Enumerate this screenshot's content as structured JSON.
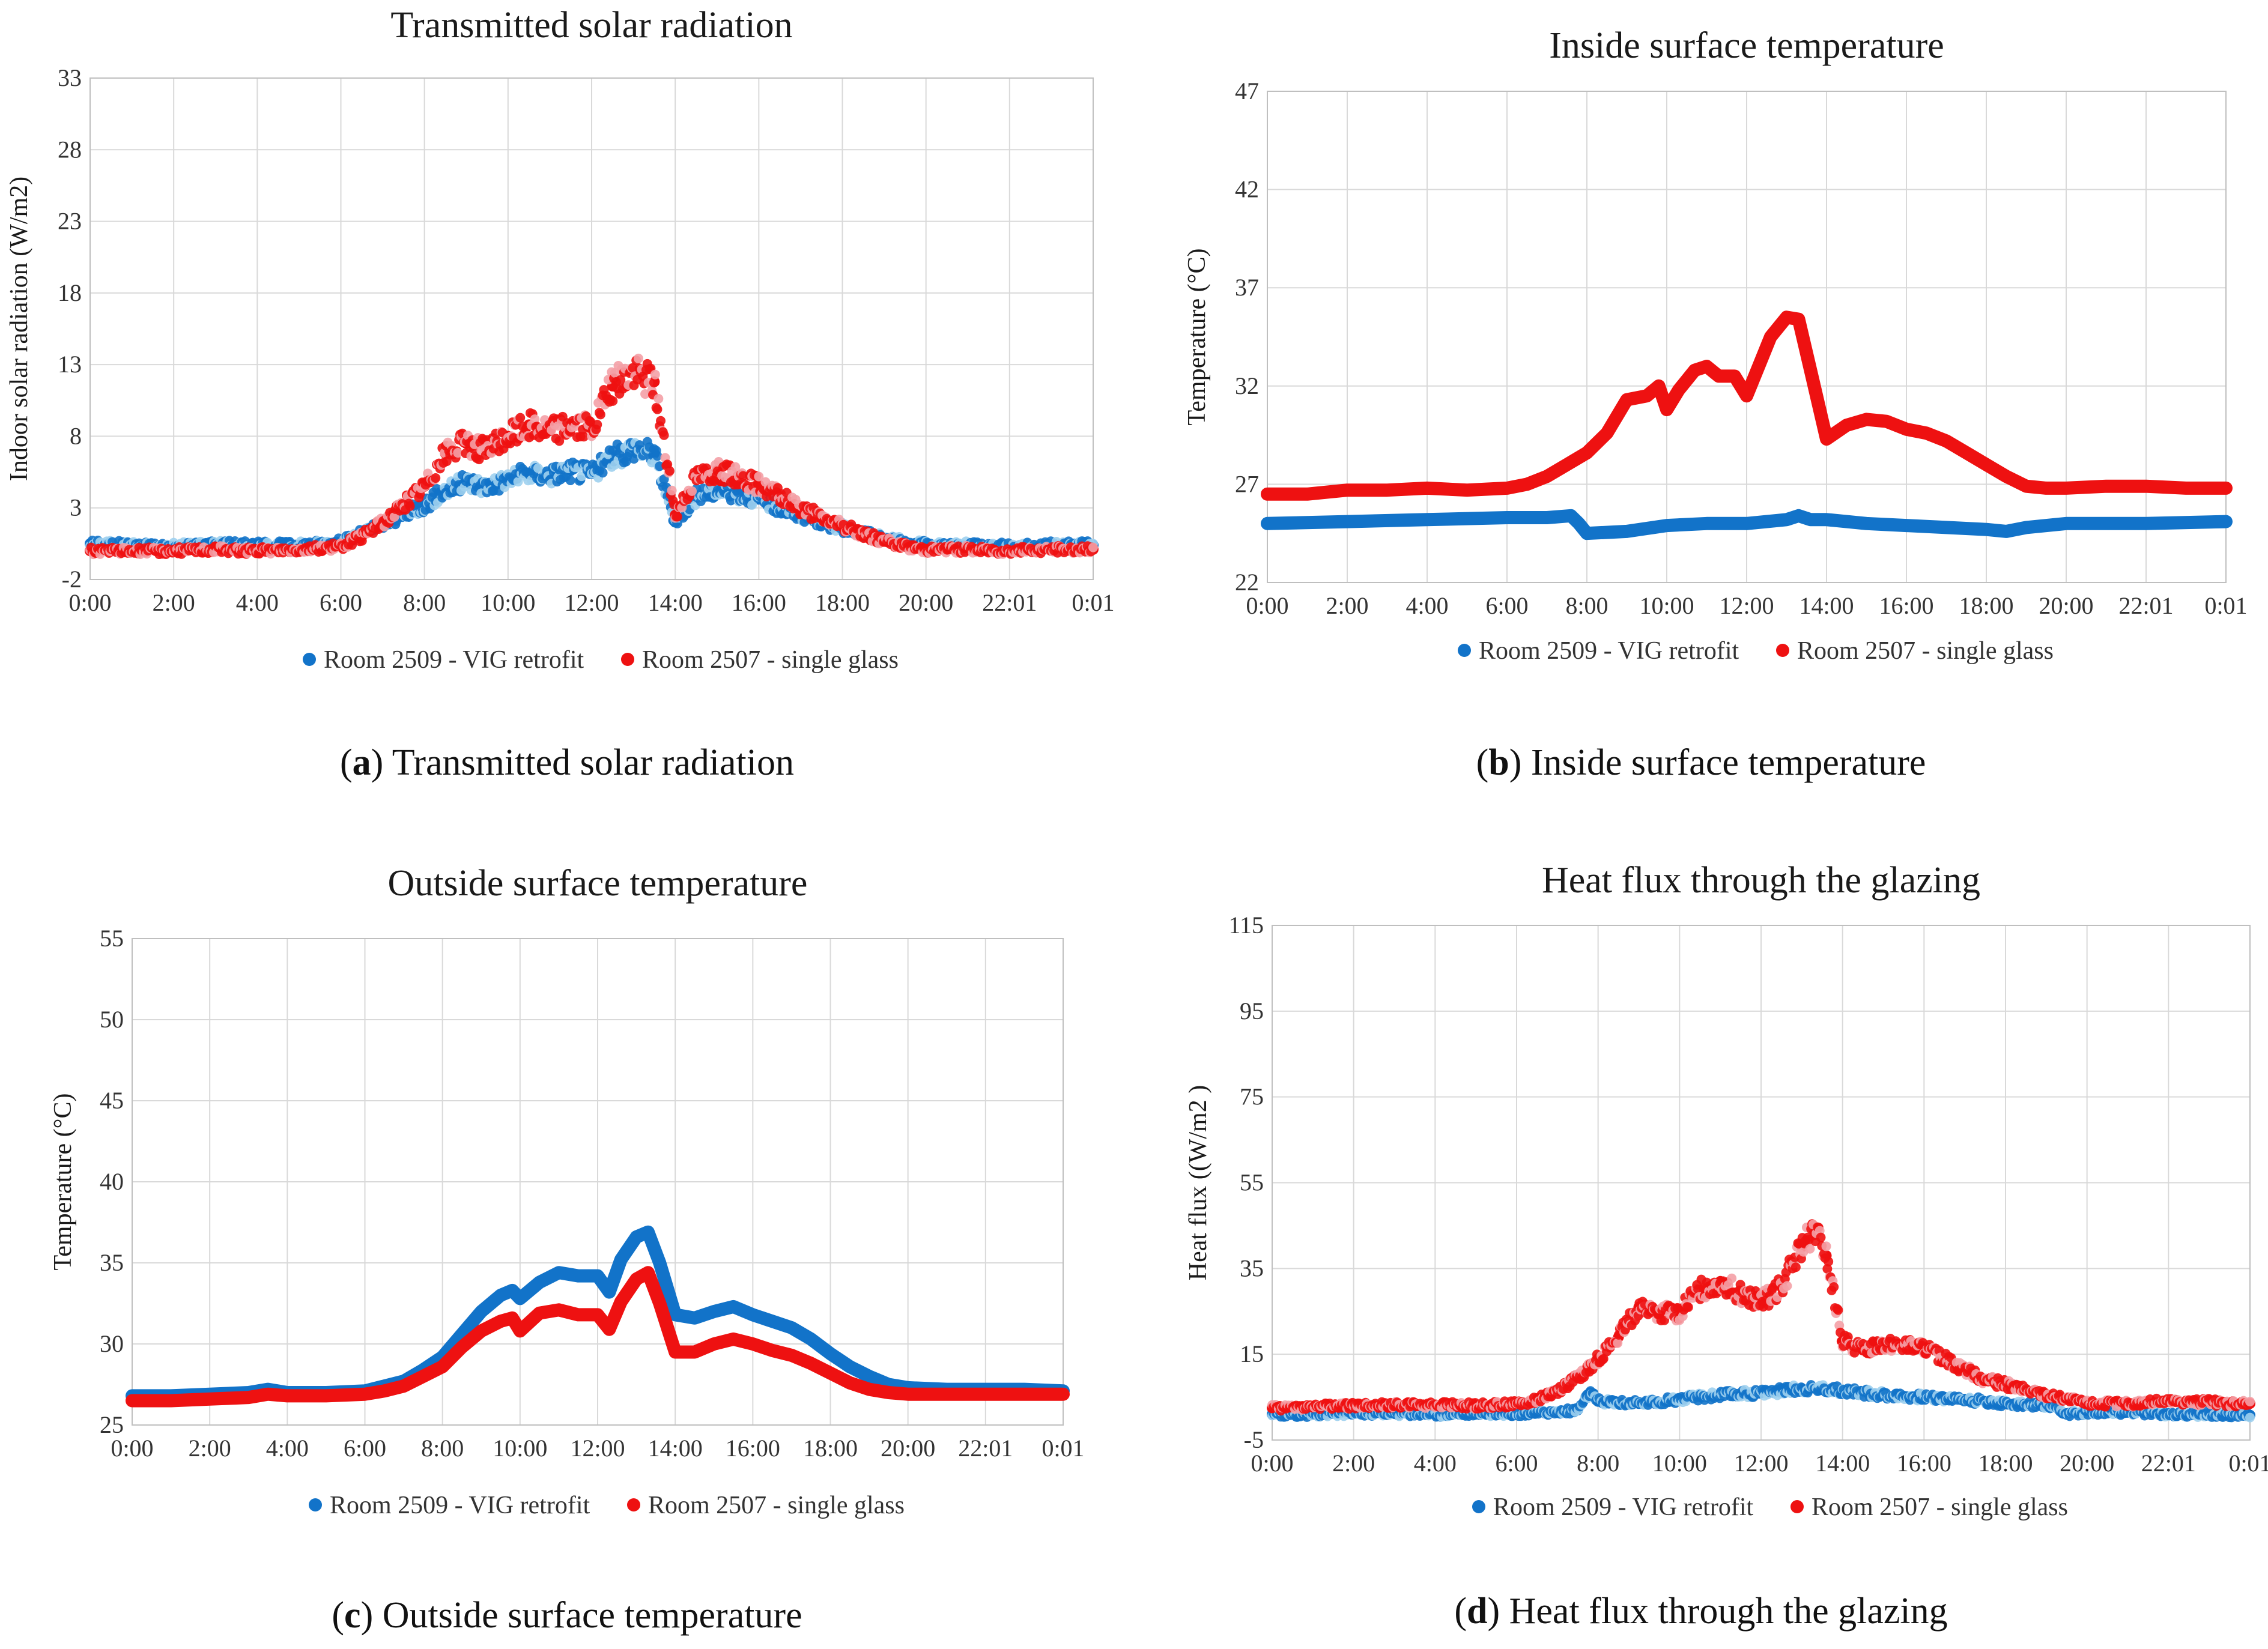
{
  "colors": {
    "vig": "#1273c9",
    "vig_light": "#9fd0ee",
    "single": "#ee1111",
    "single_light": "#f4a0a6",
    "grid": "#d9d9d9",
    "axis": "#bfbfbf"
  },
  "legend": {
    "vig": "Room 2509 - VIG retrofit",
    "single": "Room 2507 - single glass"
  },
  "chart_data": [
    {
      "id": "a",
      "type": "scatter",
      "title": "Transmitted solar radiation",
      "caption_letter": "a",
      "caption_text": "Transmitted solar radiation",
      "xlabel": "",
      "ylabel": "Indoor solar radiation (W/m2)",
      "x_tick_labels": [
        "0:00",
        "2:00",
        "4:00",
        "6:00",
        "8:00",
        "10:00",
        "12:00",
        "14:00",
        "16:00",
        "18:00",
        "20:00",
        "22:01",
        "0:01"
      ],
      "y_ticks": [
        -2,
        3,
        8,
        13,
        18,
        23,
        28,
        33
      ],
      "ylim": [
        -2,
        33
      ],
      "series": [
        {
          "name": "Room 2509 - VIG retrofit",
          "color_key": "vig",
          "x": [
            0,
            1,
            2,
            3,
            4,
            5,
            6,
            6.5,
            7,
            7.5,
            8,
            8.5,
            9,
            9.5,
            10,
            10.5,
            11,
            11.5,
            12,
            12.5,
            13,
            13.5,
            14,
            14.5,
            15,
            15.5,
            16,
            16.5,
            17,
            17.5,
            18,
            18.5,
            19,
            19.5,
            20,
            21,
            22,
            23,
            24
          ],
          "y": [
            0.5,
            0.4,
            0.3,
            0.5,
            0.4,
            0.4,
            0.6,
            1.2,
            1.8,
            2.5,
            3.2,
            4.2,
            4.8,
            4.5,
            5.0,
            5.4,
            5.3,
            5.6,
            5.4,
            6.5,
            7.2,
            6.8,
            2.0,
            3.8,
            4.2,
            4.0,
            3.6,
            3.0,
            2.5,
            2.0,
            1.6,
            1.2,
            0.9,
            0.6,
            0.4,
            0.4,
            0.3,
            0.4,
            0.4
          ]
        },
        {
          "name": "Room 2507 - single glass",
          "color_key": "single",
          "x": [
            0,
            1,
            2,
            3,
            4,
            5,
            6,
            6.5,
            7,
            7.5,
            8,
            8.5,
            9,
            9.5,
            10,
            10.5,
            11,
            11.5,
            12,
            12.5,
            13,
            13.5,
            14,
            14.5,
            15,
            15.5,
            16,
            16.5,
            17,
            17.5,
            18,
            18.5,
            19,
            19.5,
            20,
            21,
            22,
            23,
            24
          ],
          "y": [
            0.0,
            0.0,
            0.0,
            0.1,
            0.0,
            0.1,
            0.3,
            1.0,
            2.0,
            3.2,
            4.5,
            6.8,
            7.5,
            7.0,
            8.0,
            8.8,
            8.4,
            8.8,
            8.5,
            11.5,
            12.5,
            11.8,
            2.5,
            5.2,
            5.6,
            5.2,
            4.6,
            3.8,
            3.0,
            2.3,
            1.7,
            1.2,
            0.7,
            0.3,
            0.1,
            0.1,
            0.0,
            0.1,
            0.1
          ]
        }
      ]
    },
    {
      "id": "b",
      "type": "line",
      "title": "Inside surface temperature",
      "caption_letter": "b",
      "caption_text": "Inside surface temperature",
      "xlabel": "",
      "ylabel": "Temperature (°C)",
      "x_tick_labels": [
        "0:00",
        "2:00",
        "4:00",
        "6:00",
        "8:00",
        "10:00",
        "12:00",
        "14:00",
        "16:00",
        "18:00",
        "20:00",
        "22:01",
        "0:01"
      ],
      "y_ticks": [
        22,
        27,
        32,
        37,
        42,
        47
      ],
      "ylim": [
        22,
        47
      ],
      "series": [
        {
          "name": "Room 2509 - VIG retrofit",
          "color_key": "vig",
          "x": [
            0,
            2,
            4,
            6,
            7,
            7.6,
            7.8,
            8.0,
            9,
            10,
            11,
            12,
            13,
            13.3,
            13.6,
            14,
            15,
            16,
            17,
            18,
            18.5,
            19,
            20,
            22,
            24
          ],
          "y": [
            25.0,
            25.1,
            25.2,
            25.3,
            25.3,
            25.4,
            25.0,
            24.5,
            24.6,
            24.9,
            25.0,
            25.0,
            25.2,
            25.4,
            25.2,
            25.2,
            25.0,
            24.9,
            24.8,
            24.7,
            24.6,
            24.8,
            25.0,
            25.0,
            25.1
          ]
        },
        {
          "name": "Room 2507 - single glass",
          "color_key": "single",
          "x": [
            0,
            1,
            2,
            3,
            4,
            5,
            6,
            6.5,
            7,
            7.5,
            8,
            8.5,
            9,
            9.5,
            9.8,
            10,
            10.3,
            10.7,
            11,
            11.3,
            11.7,
            12,
            12.3,
            12.6,
            13,
            13.3,
            13.6,
            14,
            14.5,
            15,
            15.5,
            16,
            16.5,
            17,
            17.5,
            18,
            18.5,
            19,
            19.5,
            20,
            21,
            22,
            23,
            24
          ],
          "y": [
            26.5,
            26.5,
            26.7,
            26.7,
            26.8,
            26.7,
            26.8,
            27.0,
            27.4,
            28.0,
            28.6,
            29.6,
            31.3,
            31.5,
            32.0,
            30.8,
            31.8,
            32.8,
            33.0,
            32.5,
            32.5,
            31.5,
            33.0,
            34.5,
            35.5,
            35.4,
            32.8,
            29.3,
            30.0,
            30.3,
            30.2,
            29.8,
            29.6,
            29.2,
            28.6,
            28.0,
            27.4,
            26.9,
            26.8,
            26.8,
            26.9,
            26.9,
            26.8,
            26.8
          ]
        }
      ]
    },
    {
      "id": "c",
      "type": "line",
      "title": "Outside surface temperature",
      "caption_letter": "c",
      "caption_text": "Outside surface temperature",
      "xlabel": "",
      "ylabel": "Temperature (°C)",
      "x_tick_labels": [
        "0:00",
        "2:00",
        "4:00",
        "6:00",
        "8:00",
        "10:00",
        "12:00",
        "14:00",
        "16:00",
        "18:00",
        "20:00",
        "22:01",
        "0:01"
      ],
      "y_ticks": [
        25,
        30,
        35,
        40,
        45,
        50,
        55
      ],
      "ylim": [
        25,
        55
      ],
      "series": [
        {
          "name": "Room 2509 - VIG retrofit",
          "color_key": "vig",
          "x": [
            0,
            1,
            2,
            3,
            3.5,
            4,
            5,
            6,
            6.5,
            7,
            7.5,
            8,
            8.5,
            9,
            9.5,
            9.8,
            10,
            10.5,
            11,
            11.5,
            12,
            12.3,
            12.6,
            13,
            13.3,
            13.6,
            14,
            14.5,
            15,
            15.5,
            16,
            16.5,
            17,
            17.5,
            18,
            18.5,
            19,
            19.5,
            20,
            21,
            22,
            23,
            24
          ],
          "y": [
            26.8,
            26.8,
            26.9,
            27.0,
            27.2,
            27.0,
            27.0,
            27.1,
            27.4,
            27.7,
            28.4,
            29.2,
            30.6,
            32.0,
            33.0,
            33.3,
            32.8,
            33.8,
            34.4,
            34.2,
            34.2,
            33.2,
            35.2,
            36.6,
            36.9,
            35.0,
            31.8,
            31.6,
            32.0,
            32.3,
            31.8,
            31.4,
            31.0,
            30.3,
            29.4,
            28.6,
            28.0,
            27.5,
            27.3,
            27.2,
            27.2,
            27.2,
            27.1
          ]
        },
        {
          "name": "Room 2507 - single glass",
          "color_key": "single",
          "x": [
            0,
            1,
            2,
            3,
            3.5,
            4,
            5,
            6,
            6.5,
            7,
            7.5,
            8,
            8.5,
            9,
            9.5,
            9.8,
            10,
            10.5,
            11,
            11.5,
            12,
            12.3,
            12.6,
            13,
            13.3,
            13.6,
            14,
            14.5,
            15,
            15.5,
            16,
            16.5,
            17,
            17.5,
            18,
            18.5,
            19,
            19.5,
            20,
            21,
            22,
            23,
            24
          ],
          "y": [
            26.5,
            26.5,
            26.6,
            26.7,
            26.9,
            26.8,
            26.8,
            26.9,
            27.1,
            27.4,
            28.0,
            28.6,
            29.8,
            30.8,
            31.4,
            31.6,
            30.8,
            31.9,
            32.1,
            31.8,
            31.8,
            30.9,
            32.6,
            34.0,
            34.4,
            32.5,
            29.5,
            29.5,
            30.0,
            30.3,
            30.0,
            29.6,
            29.3,
            28.8,
            28.2,
            27.6,
            27.2,
            27.0,
            26.9,
            26.9,
            26.9,
            26.9,
            26.9
          ]
        }
      ]
    },
    {
      "id": "d",
      "type": "scatter",
      "title": "Heat flux through the glazing",
      "caption_letter": "d",
      "caption_text": "Heat flux through the glazing",
      "xlabel": "",
      "ylabel": "Heat flux ((W/m2 )",
      "x_tick_labels": [
        "0:00",
        "2:00",
        "4:00",
        "6:00",
        "8:00",
        "10:00",
        "12:00",
        "14:00",
        "16:00",
        "18:00",
        "20:00",
        "22:01",
        "0:01"
      ],
      "y_ticks": [
        -5,
        15,
        35,
        55,
        75,
        95,
        115
      ],
      "ylim": [
        -5,
        115
      ],
      "series": [
        {
          "name": "Room 2509 - VIG retrofit",
          "color_key": "vig",
          "x": [
            0,
            1,
            2,
            3,
            4,
            5,
            6,
            7,
            7.5,
            7.8,
            8,
            9,
            10,
            11,
            12,
            12.5,
            13,
            13.5,
            14,
            15,
            16,
            17,
            18,
            19,
            19.5,
            20,
            21,
            22,
            23,
            24
          ],
          "y": [
            1.0,
            1.0,
            1.2,
            1.2,
            1.0,
            1.2,
            1.2,
            1.5,
            2.0,
            6.0,
            4.0,
            3.5,
            4.5,
            5.5,
            6.0,
            6.5,
            7.0,
            7.0,
            6.5,
            5.5,
            5.0,
            4.5,
            3.5,
            3.0,
            1.0,
            1.5,
            1.5,
            1.0,
            1.0,
            0.8
          ]
        },
        {
          "name": "Room 2507 - single glass",
          "color_key": "single",
          "x": [
            0,
            1,
            2,
            3,
            4,
            5,
            6,
            6.5,
            7,
            7.5,
            8,
            8.5,
            9,
            9.5,
            10,
            10.5,
            11,
            11.5,
            12,
            12.5,
            13,
            13.3,
            13.6,
            14,
            14.5,
            15,
            15.5,
            16,
            16.5,
            17,
            17.5,
            18,
            18.5,
            19,
            19.5,
            20,
            21,
            22,
            23,
            24
          ],
          "y": [
            2.5,
            2.8,
            3.0,
            3.2,
            3.2,
            3.0,
            3.4,
            4.5,
            6.5,
            9.5,
            14.0,
            19.0,
            26.0,
            24.5,
            25.0,
            30.0,
            32.0,
            29.0,
            27.0,
            31.0,
            40.0,
            44.0,
            38.0,
            18.0,
            16.0,
            17.5,
            17.0,
            16.5,
            14.0,
            11.5,
            9.0,
            8.0,
            6.5,
            5.5,
            4.5,
            3.5,
            3.5,
            4.0,
            3.8,
            3.5
          ]
        }
      ]
    }
  ]
}
